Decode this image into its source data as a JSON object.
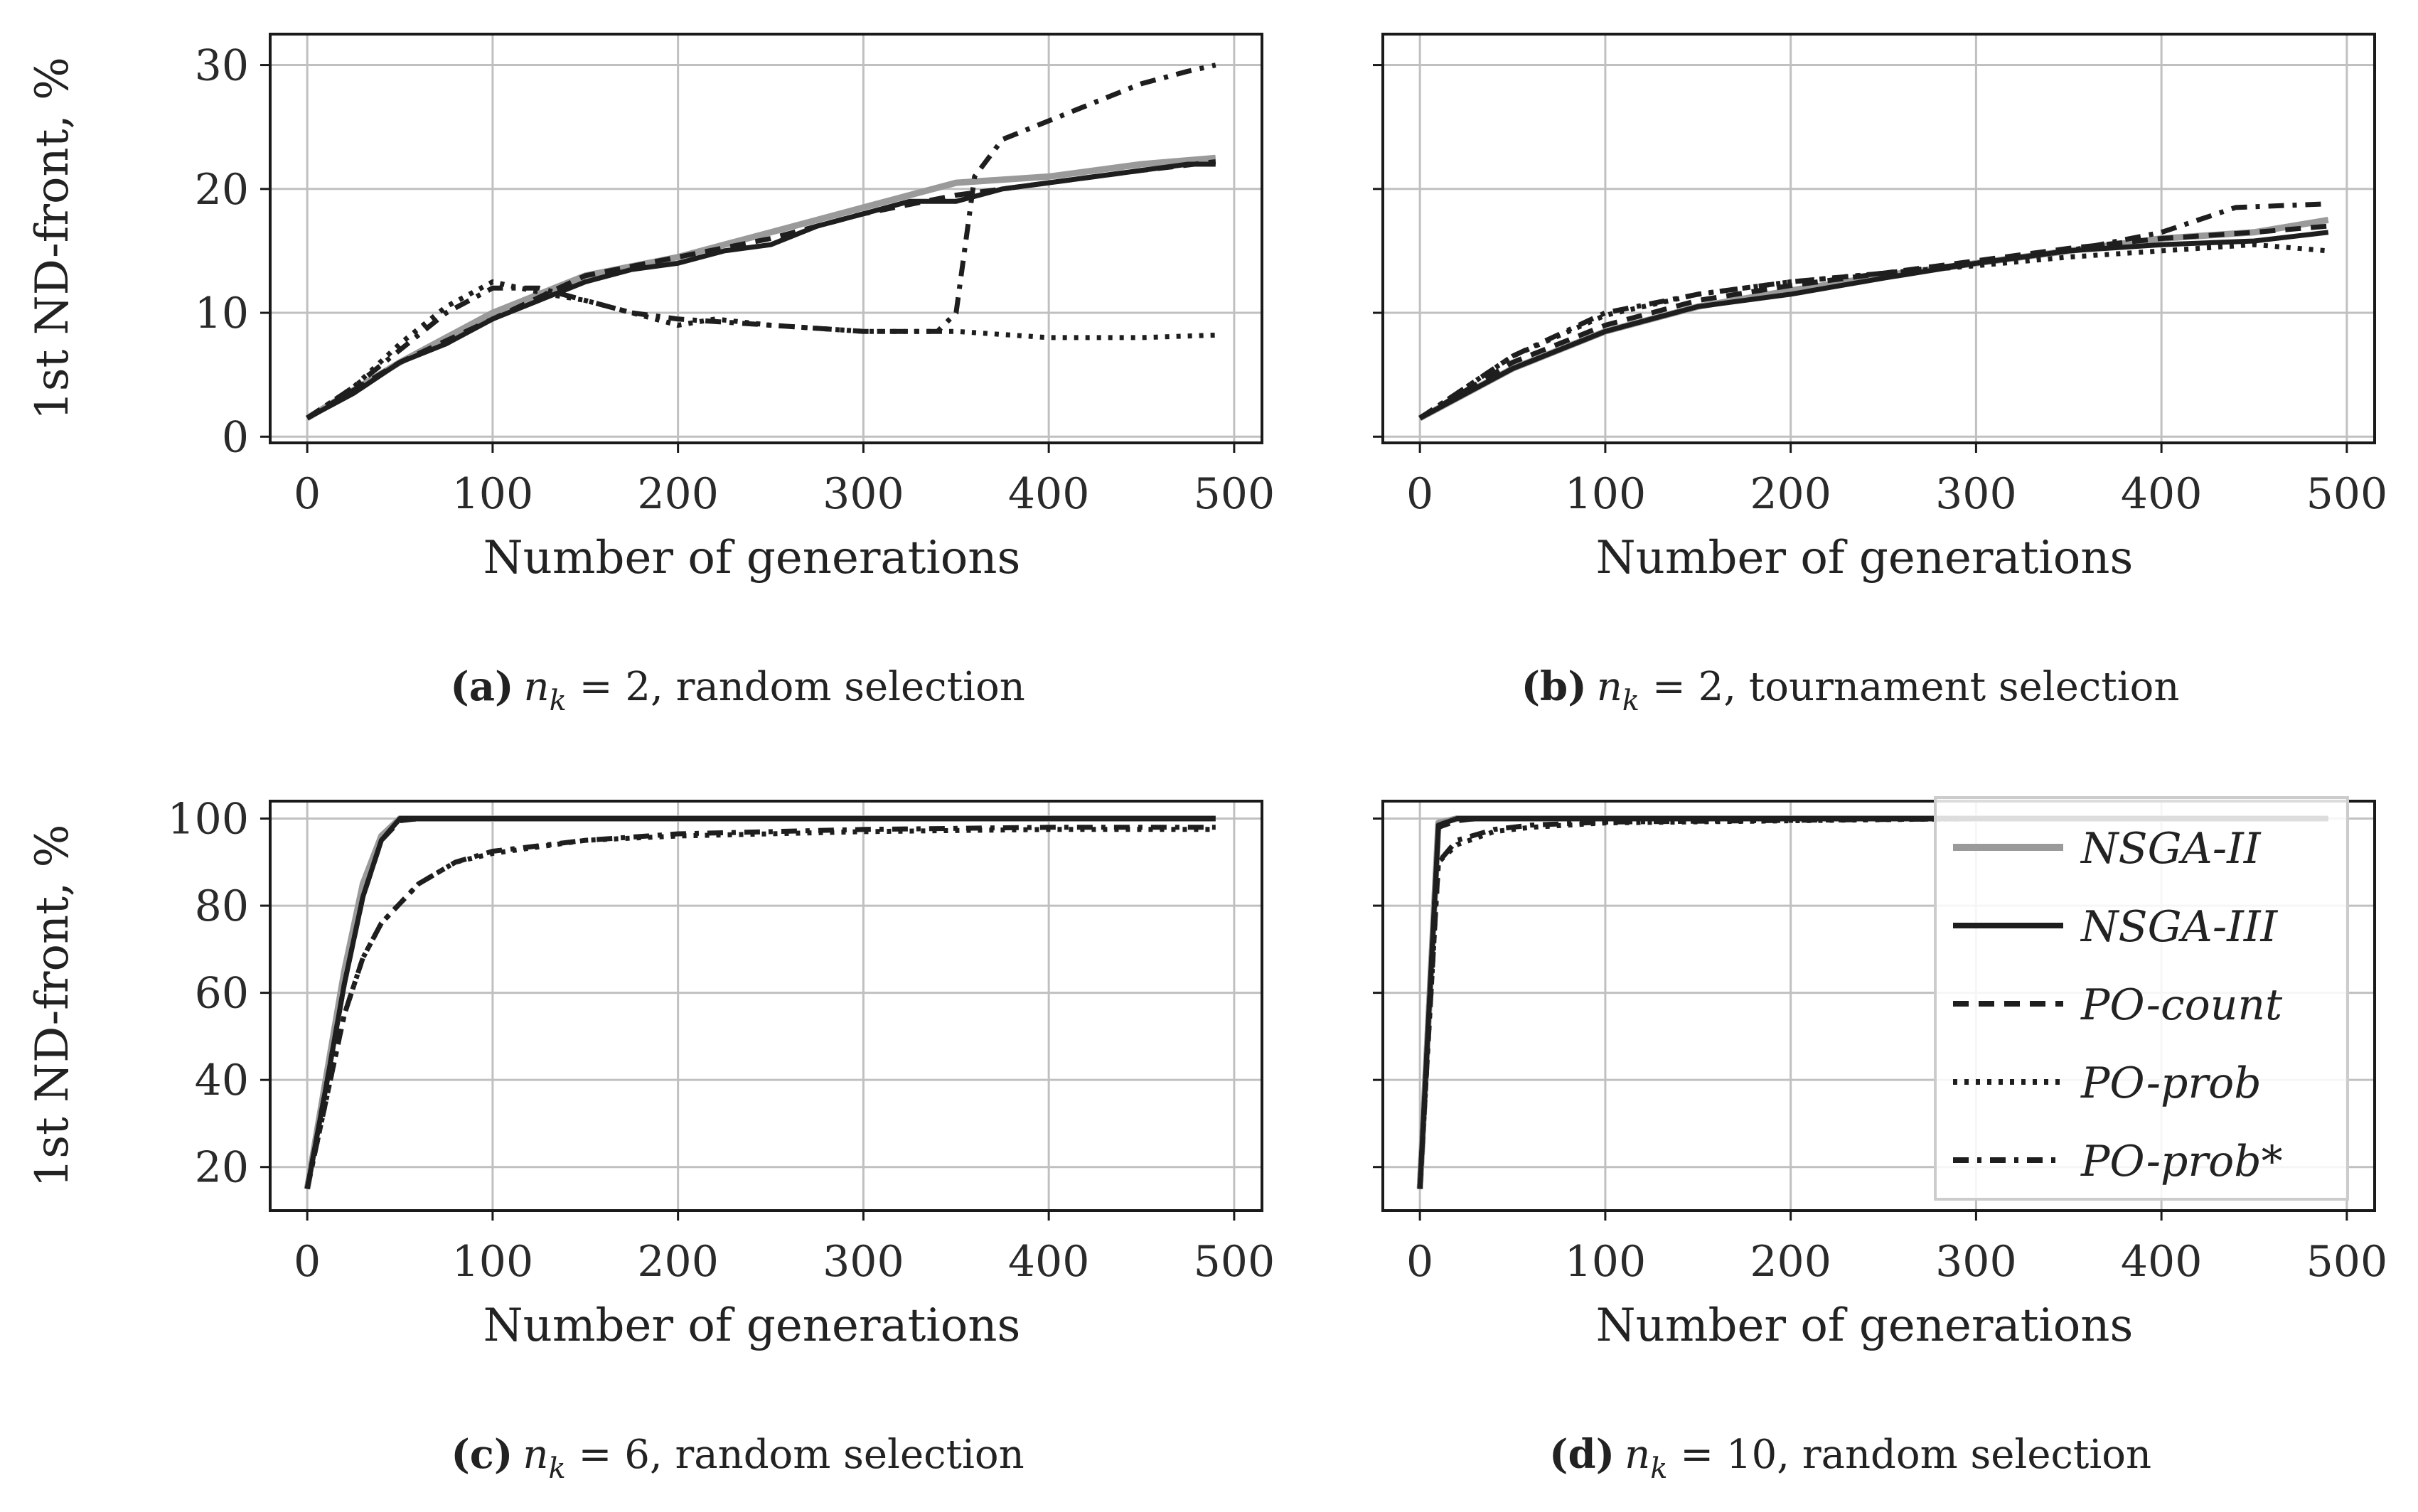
{
  "colors": {
    "background": "#ffffff",
    "grid": "#c0c0c0",
    "axis": "#1a1a1a",
    "nsga2": "#9a9a9a",
    "dark": "#1e1e1e"
  },
  "series_styles": [
    {
      "name": "NSGA-II",
      "color": "#9a9a9a",
      "dash": "",
      "width": 9
    },
    {
      "name": "NSGA-III",
      "color": "#1e1e1e",
      "dash": "",
      "width": 7
    },
    {
      "name": "PO-count",
      "color": "#1e1e1e",
      "dash": "22,14",
      "width": 7
    },
    {
      "name": "PO-prob",
      "color": "#1e1e1e",
      "dash": "6,10",
      "width": 7
    },
    {
      "name": "PO-prob*",
      "color": "#1e1e1e",
      "dash": "22,12,6,12",
      "width": 7
    }
  ],
  "legend": {
    "entries": [
      "NSGA-II",
      "NSGA-III",
      "PO-count",
      "PO-prob",
      "PO-prob*"
    ]
  },
  "chart_data": [
    {
      "id": "a",
      "type": "line",
      "caption_bold": "(a)",
      "caption_math": "n",
      "caption_sub": "k",
      "caption_rest": " = 2, random selection",
      "xlabel": "Number of generations",
      "ylabel": "1st ND-front, %",
      "xlim": [
        -20,
        515
      ],
      "ylim": [
        -0.5,
        32.5
      ],
      "xticks": [
        0,
        100,
        200,
        300,
        400,
        500
      ],
      "yticks": [
        0,
        10,
        20,
        30
      ],
      "show_ytick_labels": true,
      "series": [
        {
          "name": "NSGA-II",
          "x": [
            0,
            50,
            100,
            150,
            200,
            250,
            300,
            350,
            400,
            450,
            490
          ],
          "y": [
            1.5,
            6,
            10,
            13,
            14.5,
            16.5,
            18.5,
            20.5,
            21,
            22,
            22.5
          ]
        },
        {
          "name": "NSGA-III",
          "x": [
            0,
            25,
            50,
            75,
            100,
            125,
            150,
            175,
            200,
            225,
            250,
            275,
            300,
            325,
            350,
            375,
            400,
            425,
            450,
            475,
            490
          ],
          "y": [
            1.5,
            3.5,
            6,
            7.5,
            9.5,
            11,
            12.5,
            13.5,
            14,
            15,
            15.5,
            17,
            18,
            19,
            19,
            20,
            20.5,
            21,
            21.5,
            22,
            22
          ]
        },
        {
          "name": "PO-count",
          "x": [
            0,
            50,
            100,
            150,
            200,
            250,
            300,
            350,
            400,
            450,
            490
          ],
          "y": [
            1.5,
            6,
            9.5,
            13,
            14.5,
            16,
            18,
            19.5,
            20.5,
            21.5,
            22.2
          ]
        },
        {
          "name": "PO-prob",
          "x": [
            0,
            25,
            50,
            75,
            100,
            115,
            130,
            150,
            175,
            200,
            220,
            250,
            300,
            350,
            400,
            450,
            490
          ],
          "y": [
            1.5,
            4,
            7.5,
            10.5,
            12.5,
            12,
            11.5,
            11,
            10,
            9,
            9.5,
            9,
            8.5,
            8.5,
            8,
            8,
            8.2
          ]
        },
        {
          "name": "PO-prob*",
          "x": [
            0,
            25,
            50,
            75,
            100,
            125,
            150,
            175,
            200,
            250,
            300,
            340,
            350,
            360,
            375,
            400,
            425,
            450,
            475,
            490
          ],
          "y": [
            1.5,
            4,
            7,
            10,
            12,
            12,
            11,
            10,
            9.5,
            9,
            8.5,
            8.5,
            10,
            21,
            24,
            25.5,
            27,
            28.5,
            29.5,
            30
          ]
        }
      ]
    },
    {
      "id": "b",
      "type": "line",
      "caption_bold": "(b)",
      "caption_math": "n",
      "caption_sub": "k",
      "caption_rest": " = 2, tournament selection",
      "xlabel": "Number of generations",
      "ylabel": "",
      "xlim": [
        -20,
        515
      ],
      "ylim": [
        -0.5,
        32.5
      ],
      "xticks": [
        0,
        100,
        200,
        300,
        400,
        500
      ],
      "yticks": [
        0,
        10,
        20,
        30
      ],
      "show_ytick_labels": false,
      "series": [
        {
          "name": "NSGA-II",
          "x": [
            0,
            50,
            100,
            150,
            200,
            250,
            300,
            350,
            400,
            450,
            490
          ],
          "y": [
            1.5,
            5.5,
            8.5,
            10.5,
            11.8,
            13,
            14,
            15,
            16,
            16.5,
            17.5
          ]
        },
        {
          "name": "NSGA-III",
          "x": [
            0,
            50,
            100,
            150,
            200,
            250,
            300,
            350,
            400,
            450,
            490
          ],
          "y": [
            1.5,
            5.5,
            8.5,
            10.5,
            11.5,
            12.8,
            14,
            15,
            15.5,
            15.8,
            16.5
          ]
        },
        {
          "name": "PO-count",
          "x": [
            0,
            50,
            100,
            150,
            200,
            250,
            300,
            350,
            400,
            450,
            490
          ],
          "y": [
            1.5,
            6,
            9,
            11,
            12.2,
            13.2,
            14.2,
            15.2,
            16,
            16.5,
            17
          ]
        },
        {
          "name": "PO-prob",
          "x": [
            0,
            50,
            100,
            150,
            200,
            250,
            300,
            350,
            400,
            450,
            490
          ],
          "y": [
            1.5,
            6.5,
            9.8,
            11.5,
            12.5,
            13.2,
            13.8,
            14.5,
            15,
            15.5,
            15
          ]
        },
        {
          "name": "PO-prob*",
          "x": [
            0,
            50,
            100,
            150,
            200,
            250,
            300,
            350,
            400,
            440,
            490
          ],
          "y": [
            1.5,
            6.5,
            10,
            11.5,
            12.5,
            13.2,
            14,
            15,
            16.5,
            18.5,
            18.8
          ]
        }
      ]
    },
    {
      "id": "c",
      "type": "line",
      "caption_bold": "(c)",
      "caption_math": "n",
      "caption_sub": "k",
      "caption_rest": " = 6, random selection",
      "xlabel": "Number of generations",
      "ylabel": "1st ND-front, %",
      "xlim": [
        -20,
        515
      ],
      "ylim": [
        10,
        104
      ],
      "xticks": [
        0,
        100,
        200,
        300,
        400,
        500
      ],
      "yticks": [
        20,
        40,
        60,
        80,
        100
      ],
      "show_ytick_labels": true,
      "series": [
        {
          "name": "NSGA-II",
          "x": [
            0,
            10,
            20,
            30,
            40,
            50,
            60,
            490
          ],
          "y": [
            15,
            40,
            65,
            85,
            96,
            100,
            100,
            100
          ]
        },
        {
          "name": "NSGA-III",
          "x": [
            0,
            10,
            20,
            30,
            40,
            50,
            60,
            490
          ],
          "y": [
            15,
            38,
            62,
            82,
            95,
            100,
            100,
            100
          ]
        },
        {
          "name": "PO-count",
          "x": [
            0,
            10,
            20,
            30,
            40,
            50,
            60,
            490
          ],
          "y": [
            15,
            38,
            62,
            82,
            95,
            99.5,
            100,
            100
          ]
        },
        {
          "name": "PO-prob",
          "x": [
            0,
            10,
            20,
            30,
            40,
            60,
            80,
            100,
            150,
            200,
            300,
            400,
            490
          ],
          "y": [
            15,
            35,
            55,
            68,
            76,
            85,
            90,
            92,
            95,
            96,
            97,
            97.5,
            97.5
          ]
        },
        {
          "name": "PO-prob*",
          "x": [
            0,
            10,
            20,
            30,
            40,
            60,
            80,
            100,
            150,
            200,
            300,
            400,
            490
          ],
          "y": [
            15,
            35,
            55,
            68,
            76,
            85,
            90,
            92.5,
            95,
            96.5,
            97.5,
            98,
            98
          ]
        }
      ]
    },
    {
      "id": "d",
      "type": "line",
      "caption_bold": "(d)",
      "caption_math": "n",
      "caption_sub": "k",
      "caption_rest": " = 10, random selection",
      "xlabel": "Number of generations",
      "ylabel": "",
      "xlim": [
        -20,
        515
      ],
      "ylim": [
        10,
        104
      ],
      "xticks": [
        0,
        100,
        200,
        300,
        400,
        500
      ],
      "yticks": [
        20,
        40,
        60,
        80,
        100
      ],
      "show_ytick_labels": false,
      "series": [
        {
          "name": "NSGA-II",
          "x": [
            0,
            10,
            20,
            30,
            490
          ],
          "y": [
            15,
            99,
            100,
            100,
            100
          ]
        },
        {
          "name": "NSGA-III",
          "x": [
            0,
            10,
            20,
            30,
            490
          ],
          "y": [
            15,
            98.5,
            100,
            100,
            100
          ]
        },
        {
          "name": "PO-count",
          "x": [
            0,
            10,
            20,
            30,
            490
          ],
          "y": [
            15,
            98,
            99.5,
            100,
            100
          ]
        },
        {
          "name": "PO-prob",
          "x": [
            0,
            10,
            20,
            40,
            60,
            100,
            200,
            300,
            490
          ],
          "y": [
            15,
            90,
            94,
            97,
            98,
            99,
            99.5,
            100,
            100
          ]
        },
        {
          "name": "PO-prob*",
          "x": [
            0,
            10,
            20,
            40,
            60,
            100,
            200,
            300,
            490
          ],
          "y": [
            15,
            90,
            95,
            97.5,
            98.5,
            99.2,
            99.6,
            100,
            100
          ]
        }
      ]
    }
  ]
}
